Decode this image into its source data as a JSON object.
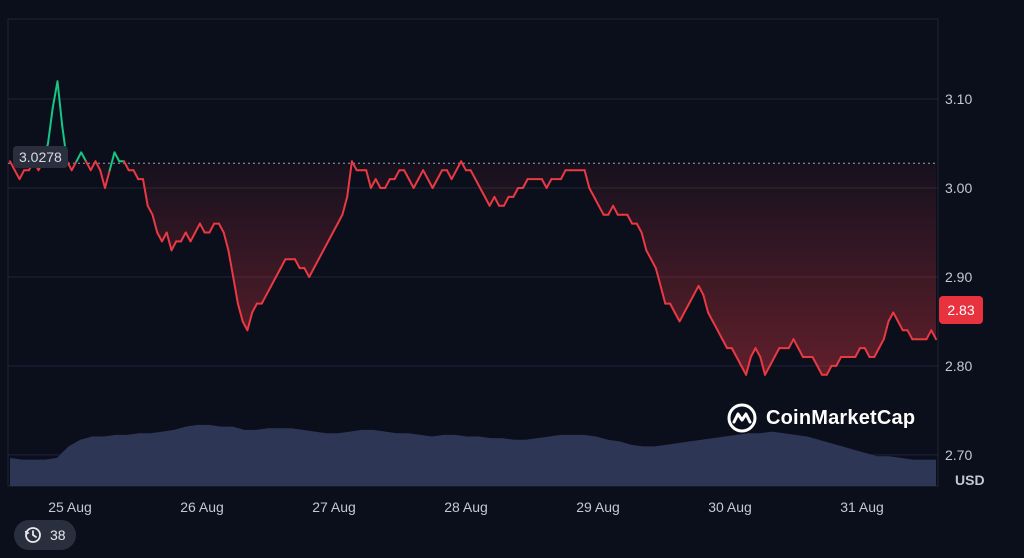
{
  "chart_data": {
    "type": "line",
    "currency": "USD",
    "y_ticks": [
      "3.10",
      "3.00",
      "2.90",
      "2.80",
      "2.70"
    ],
    "y_tick_values": [
      3.1,
      3.0,
      2.9,
      2.8,
      2.7
    ],
    "ylim": [
      2.665,
      3.19
    ],
    "x_ticks": [
      "25 Aug",
      "26 Aug",
      "27 Aug",
      "28 Aug",
      "29 Aug",
      "30 Aug",
      "31 Aug"
    ],
    "start_price_label": "3.0278",
    "start_price": 3.0278,
    "last_price_label": "2.83",
    "last_price": 2.83,
    "colors": {
      "up": "#16c784",
      "down": "#ea3943",
      "volume": "#2e3656",
      "background": "#0b0f1c"
    },
    "series": [
      {
        "values": [
          3.03,
          3.02,
          3.01,
          3.02,
          3.02,
          3.03,
          3.02,
          3.03,
          3.05,
          3.09,
          3.12,
          3.07,
          3.03,
          3.02,
          3.03,
          3.04,
          3.03,
          3.02,
          3.03,
          3.02,
          3.0,
          3.02,
          3.04,
          3.03,
          3.03,
          3.02,
          3.02,
          3.01,
          3.01,
          2.98,
          2.97,
          2.95,
          2.94,
          2.95,
          2.93,
          2.94,
          2.94,
          2.95,
          2.94,
          2.95,
          2.96,
          2.95,
          2.95,
          2.96,
          2.96,
          2.95,
          2.93,
          2.9,
          2.87,
          2.85,
          2.84,
          2.86,
          2.87,
          2.87,
          2.88,
          2.89,
          2.9,
          2.91,
          2.92,
          2.92,
          2.92,
          2.91,
          2.91,
          2.9,
          2.91,
          2.92,
          2.93,
          2.94,
          2.95,
          2.96,
          2.97,
          2.99,
          3.03,
          3.02,
          3.02,
          3.02,
          3.0,
          3.01,
          3.0,
          3.0,
          3.01,
          3.01,
          3.02,
          3.02,
          3.01,
          3.0,
          3.01,
          3.02,
          3.01,
          3.0,
          3.01,
          3.02,
          3.02,
          3.01,
          3.02,
          3.03,
          3.02,
          3.02,
          3.01,
          3.0,
          2.99,
          2.98,
          2.99,
          2.98,
          2.98,
          2.99,
          2.99,
          3.0,
          3.0,
          3.01,
          3.01,
          3.01,
          3.01,
          3.0,
          3.01,
          3.01,
          3.01,
          3.02,
          3.02,
          3.02,
          3.02,
          3.02,
          3.0,
          2.99,
          2.98,
          2.97,
          2.97,
          2.98,
          2.97,
          2.97,
          2.97,
          2.96,
          2.96,
          2.95,
          2.93,
          2.92,
          2.91,
          2.89,
          2.87,
          2.87,
          2.86,
          2.85,
          2.86,
          2.87,
          2.88,
          2.89,
          2.88,
          2.86,
          2.85,
          2.84,
          2.83,
          2.82,
          2.82,
          2.81,
          2.8,
          2.79,
          2.81,
          2.82,
          2.81,
          2.79,
          2.8,
          2.81,
          2.82,
          2.82,
          2.82,
          2.83,
          2.82,
          2.81,
          2.81,
          2.81,
          2.8,
          2.79,
          2.79,
          2.8,
          2.8,
          2.81,
          2.81,
          2.81,
          2.81,
          2.82,
          2.82,
          2.81,
          2.81,
          2.82,
          2.83,
          2.85,
          2.86,
          2.85,
          2.84,
          2.84,
          2.83,
          2.83,
          2.83,
          2.83,
          2.84,
          2.83
        ]
      }
    ],
    "volume": [
      0.17,
      0.16,
      0.16,
      0.16,
      0.17,
      0.24,
      0.28,
      0.3,
      0.3,
      0.31,
      0.31,
      0.32,
      0.32,
      0.33,
      0.34,
      0.36,
      0.37,
      0.37,
      0.36,
      0.36,
      0.34,
      0.34,
      0.35,
      0.35,
      0.35,
      0.34,
      0.33,
      0.32,
      0.32,
      0.33,
      0.34,
      0.34,
      0.33,
      0.32,
      0.32,
      0.31,
      0.3,
      0.31,
      0.31,
      0.3,
      0.3,
      0.29,
      0.29,
      0.28,
      0.28,
      0.29,
      0.3,
      0.31,
      0.31,
      0.31,
      0.3,
      0.28,
      0.27,
      0.25,
      0.24,
      0.24,
      0.25,
      0.26,
      0.27,
      0.28,
      0.29,
      0.3,
      0.31,
      0.32,
      0.32,
      0.33,
      0.32,
      0.31,
      0.3,
      0.28,
      0.26,
      0.24,
      0.22,
      0.2,
      0.18,
      0.18,
      0.17,
      0.16,
      0.16,
      0.16
    ]
  },
  "watermark": {
    "brand": "CoinMarketCap"
  },
  "history_badge": {
    "count": "38"
  }
}
